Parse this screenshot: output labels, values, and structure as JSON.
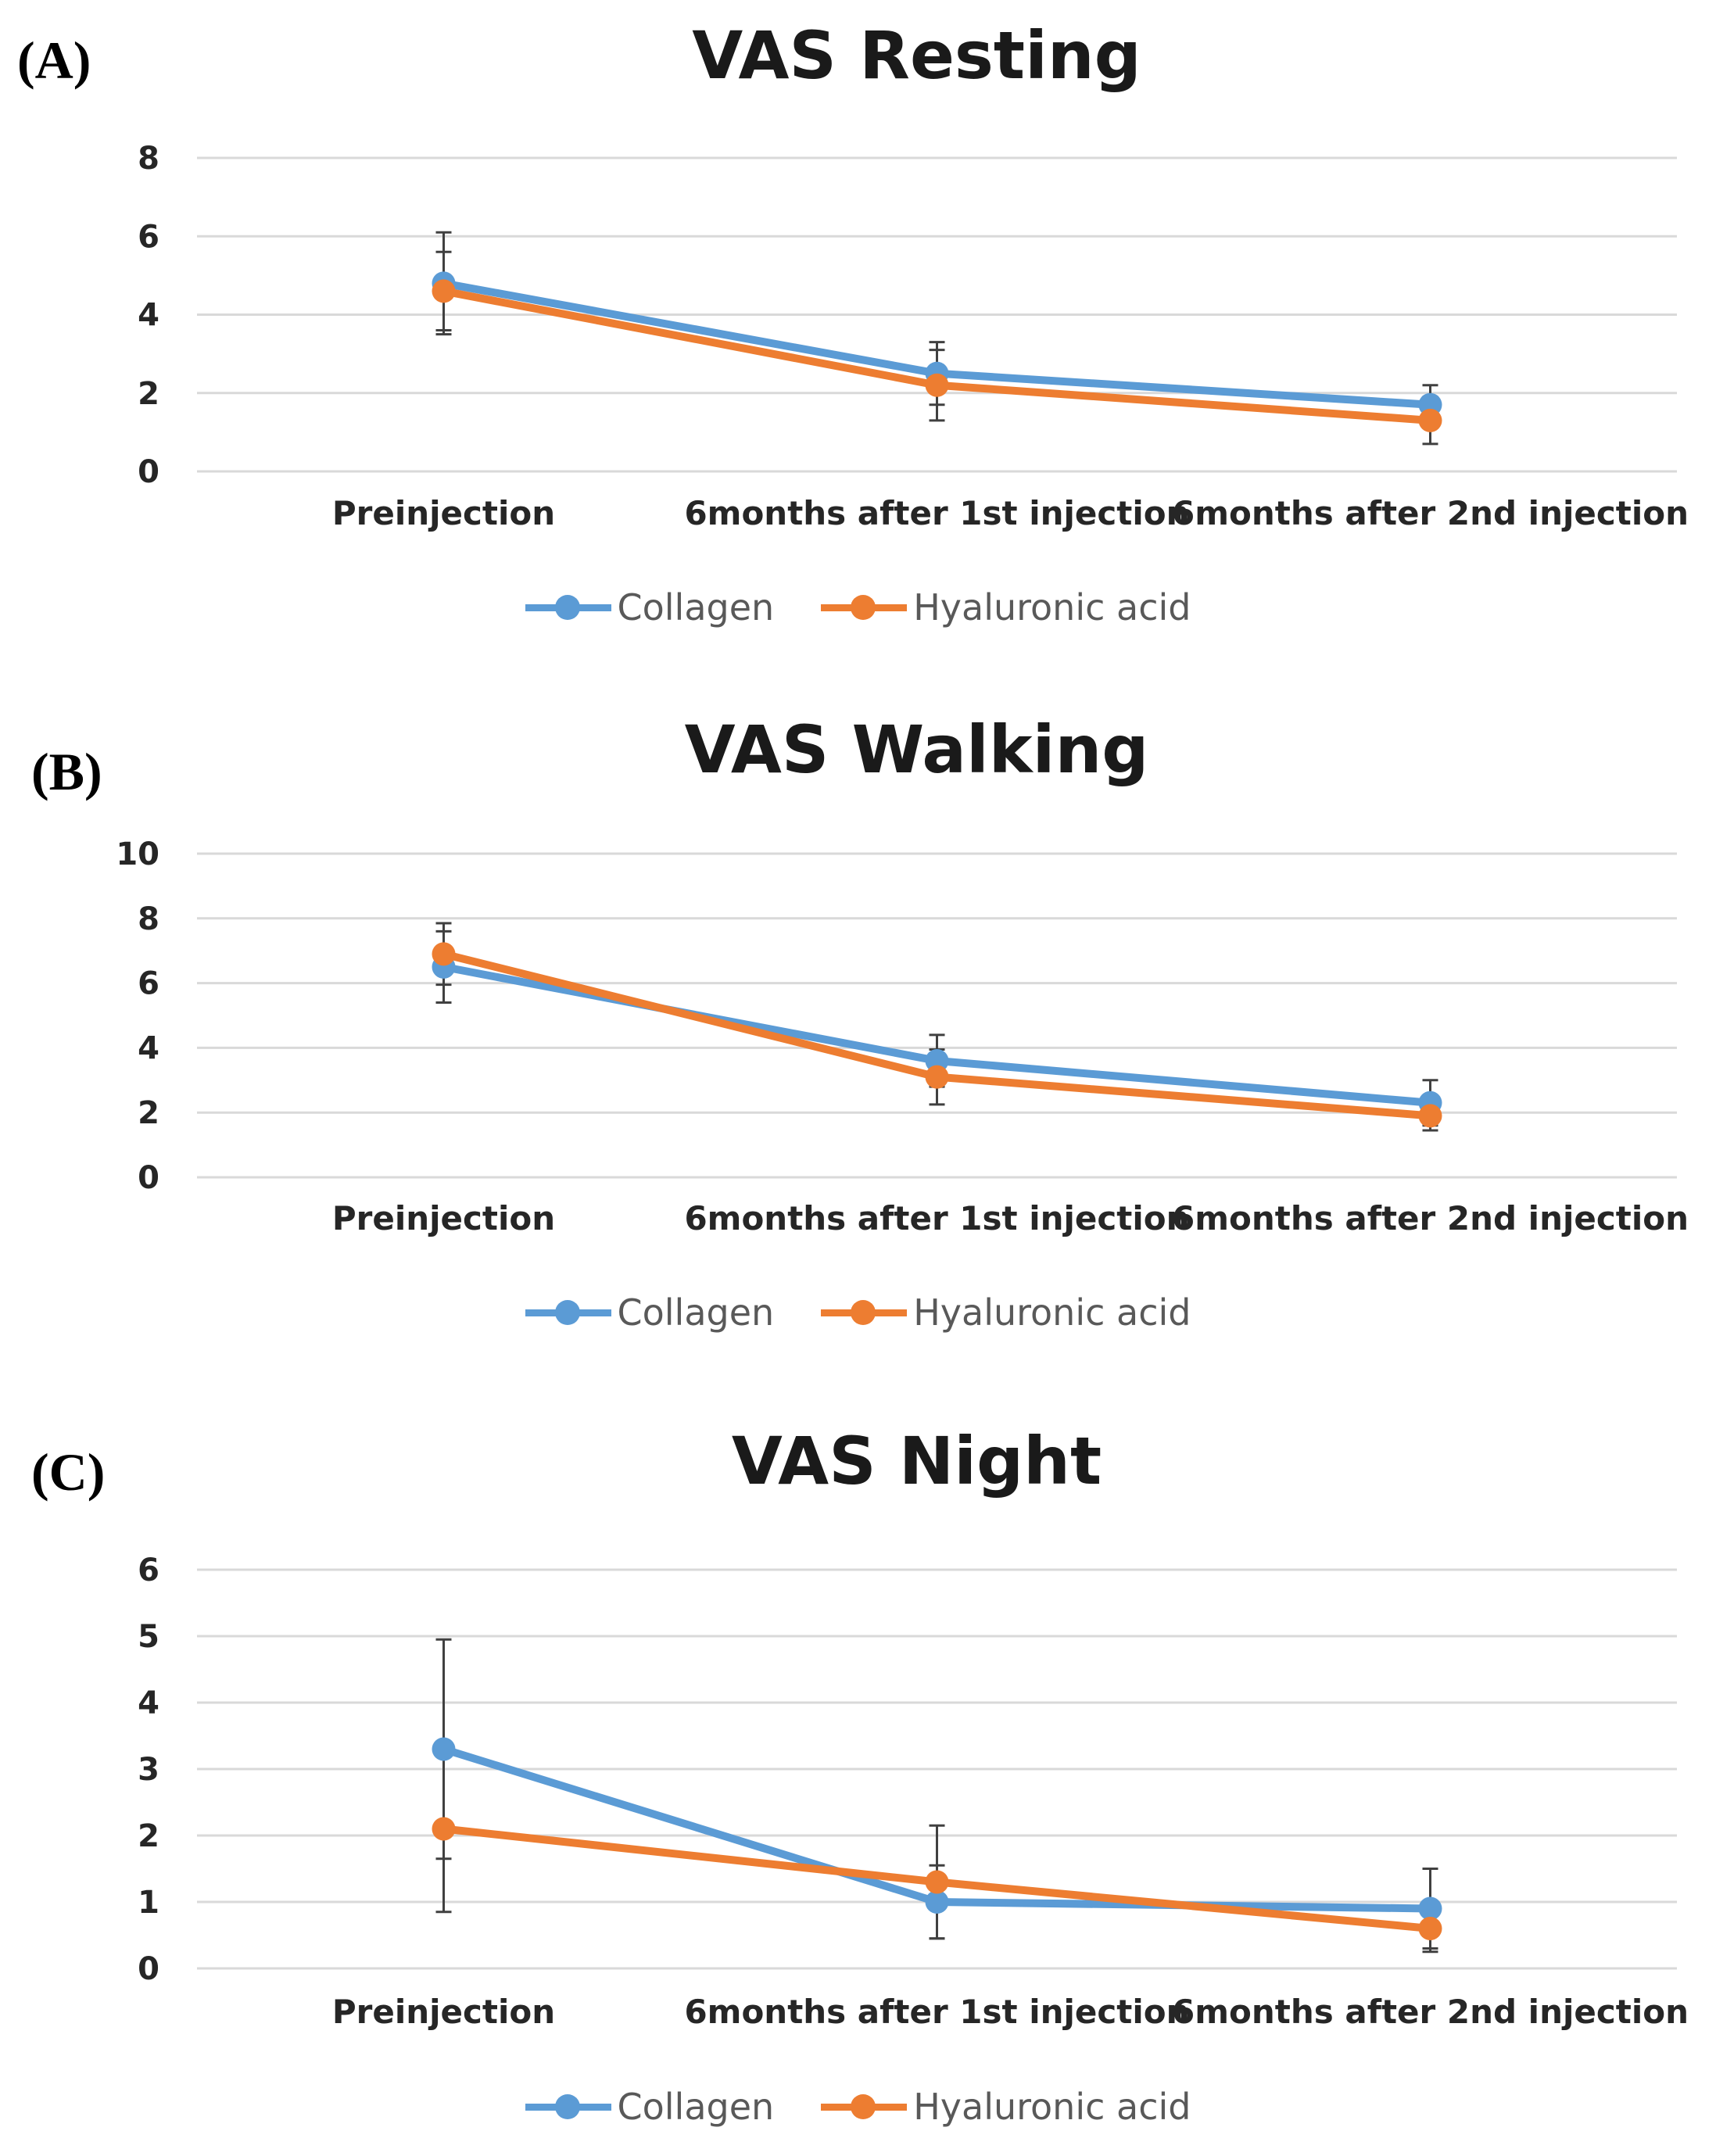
{
  "colors": {
    "collagen": "#5B9BD5",
    "hyaluronic": "#ED7D31",
    "grid": "#D9D9D9",
    "errorbar": "#404040"
  },
  "legend": {
    "collagen": "Collagen",
    "hyaluronic": "Hyaluronic acid"
  },
  "panels": [
    {
      "letter": "(A)",
      "title": "VAS Resting"
    },
    {
      "letter": "(B)",
      "title": "VAS Walking"
    },
    {
      "letter": "(C)",
      "title": "VAS Night"
    }
  ],
  "chart_data": [
    {
      "type": "line",
      "title": "VAS Resting",
      "categories": [
        "Preinjection",
        "6months after 1st injection",
        "6months after 2nd injection"
      ],
      "ylim": [
        0,
        8
      ],
      "yticks": [
        0,
        2,
        4,
        6,
        8
      ],
      "grid": true,
      "legend_position": "bottom",
      "series": [
        {
          "name": "Collagen",
          "values": [
            4.8,
            2.5,
            1.7
          ],
          "error": [
            1.3,
            0.8,
            0.5
          ]
        },
        {
          "name": "Hyaluronic acid",
          "values": [
            4.6,
            2.2,
            1.3
          ],
          "error": [
            1.0,
            0.9,
            0.6
          ]
        }
      ]
    },
    {
      "type": "line",
      "title": "VAS Walking",
      "categories": [
        "Preinjection",
        "6months after 1st injection",
        "6months after 2nd injection"
      ],
      "ylim": [
        0,
        10
      ],
      "yticks": [
        0,
        2,
        4,
        6,
        8,
        10
      ],
      "grid": true,
      "legend_position": "bottom",
      "series": [
        {
          "name": "Collagen",
          "values": [
            6.5,
            3.6,
            2.3
          ],
          "error": [
            1.1,
            0.8,
            0.7
          ]
        },
        {
          "name": "Hyaluronic acid",
          "values": [
            6.9,
            3.1,
            1.9
          ],
          "error": [
            0.95,
            0.85,
            0.45
          ]
        }
      ]
    },
    {
      "type": "line",
      "title": "VAS Night",
      "categories": [
        "Preinjection",
        "6months after 1st injection",
        "6months after 2nd injection"
      ],
      "ylim": [
        0,
        6
      ],
      "yticks": [
        0,
        1,
        2,
        3,
        4,
        5,
        6
      ],
      "grid": true,
      "legend_position": "bottom",
      "series": [
        {
          "name": "Collagen",
          "values": [
            3.3,
            1.0,
            0.9
          ],
          "error": [
            1.65,
            0.55,
            0.6
          ]
        },
        {
          "name": "Hyaluronic acid",
          "values": [
            2.1,
            1.3,
            0.6
          ],
          "error": [
            1.25,
            0.85,
            0.35
          ]
        }
      ]
    }
  ]
}
